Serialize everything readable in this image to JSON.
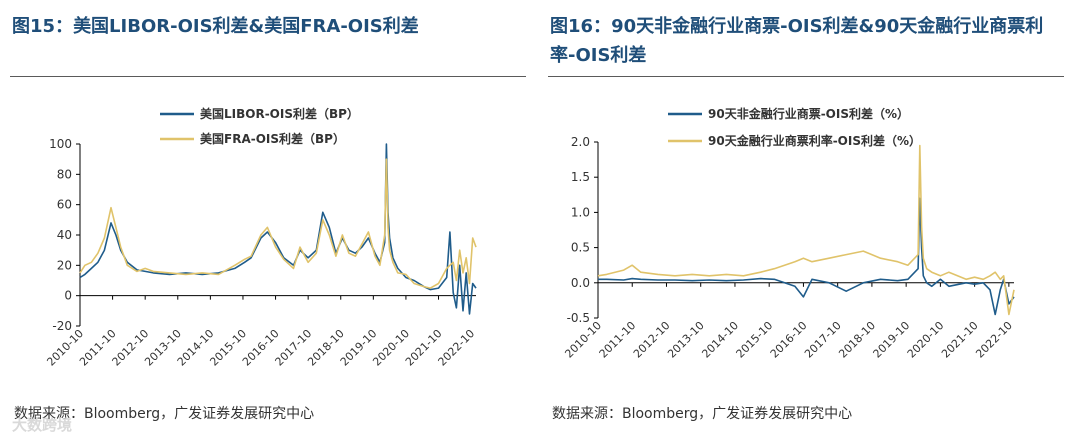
{
  "watermark": "大数跨境",
  "colors": {
    "title": "#1f4e79",
    "series_a": "#1f5c8b",
    "series_b": "#e0c36a",
    "axis": "#000000",
    "text": "#333333"
  },
  "chart_data": [
    {
      "figure_label": "图15：",
      "title": "美国LIBOR-OIS利差&美国FRA-OIS利差",
      "type": "line",
      "source_prefix": "数据来源：",
      "source_name": "Bloomberg",
      "source_suffix": "，广发证券发展研究中心",
      "ylim": [
        -20,
        100
      ],
      "yticks": [
        "100",
        "80",
        "60",
        "40",
        "20",
        "0",
        "-20"
      ],
      "ytick_values": [
        100,
        80,
        60,
        40,
        20,
        0,
        -20
      ],
      "x_range": [
        2010.75,
        2022.9
      ],
      "xticks": [
        "2010-10",
        "2011-10",
        "2012-10",
        "2013-10",
        "2014-10",
        "2015-10",
        "2016-10",
        "2017-10",
        "2018-10",
        "2019-10",
        "2020-10",
        "2021-10",
        "2022-10"
      ],
      "xtick_values": [
        2010.75,
        2011.75,
        2012.75,
        2013.75,
        2014.75,
        2015.75,
        2016.75,
        2017.75,
        2018.75,
        2019.75,
        2020.75,
        2021.75,
        2022.75
      ],
      "series": [
        {
          "name": "美国LIBOR-OIS利差（BP）",
          "color": "#1f5c8b",
          "x": [
            2010.75,
            2010.9,
            2011.1,
            2011.3,
            2011.5,
            2011.7,
            2011.85,
            2012.0,
            2012.2,
            2012.5,
            2012.75,
            2013.0,
            2013.5,
            2014.0,
            2014.5,
            2015.0,
            2015.5,
            2015.8,
            2016.0,
            2016.3,
            2016.5,
            2016.75,
            2017.0,
            2017.3,
            2017.5,
            2017.75,
            2018.0,
            2018.2,
            2018.4,
            2018.6,
            2018.8,
            2019.0,
            2019.2,
            2019.4,
            2019.6,
            2019.8,
            2019.95,
            2020.1,
            2020.15,
            2020.2,
            2020.25,
            2020.35,
            2020.5,
            2020.75,
            2021.0,
            2021.3,
            2021.5,
            2021.75,
            2022.0,
            2022.1,
            2022.2,
            2022.3,
            2022.4,
            2022.5,
            2022.6,
            2022.7,
            2022.8,
            2022.9
          ],
          "values": [
            12,
            14,
            18,
            22,
            30,
            48,
            40,
            30,
            22,
            17,
            16,
            15,
            14,
            15,
            14,
            15,
            18,
            22,
            25,
            38,
            42,
            35,
            25,
            20,
            30,
            25,
            30,
            55,
            45,
            28,
            38,
            30,
            28,
            32,
            38,
            28,
            22,
            35,
            100,
            55,
            38,
            25,
            18,
            12,
            10,
            6,
            4,
            5,
            12,
            42,
            2,
            -8,
            20,
            -10,
            15,
            -12,
            8,
            5
          ]
        },
        {
          "name": "美国FRA-OIS利差（BP）",
          "color": "#e0c36a",
          "x": [
            2010.75,
            2010.9,
            2011.1,
            2011.3,
            2011.5,
            2011.7,
            2011.85,
            2012.0,
            2012.2,
            2012.5,
            2012.75,
            2013.0,
            2013.5,
            2014.0,
            2014.5,
            2015.0,
            2015.5,
            2015.8,
            2016.0,
            2016.3,
            2016.5,
            2016.75,
            2017.0,
            2017.3,
            2017.5,
            2017.75,
            2018.0,
            2018.2,
            2018.4,
            2018.6,
            2018.8,
            2019.0,
            2019.2,
            2019.4,
            2019.6,
            2019.8,
            2019.95,
            2020.1,
            2020.15,
            2020.2,
            2020.25,
            2020.35,
            2020.5,
            2020.75,
            2021.0,
            2021.3,
            2021.5,
            2021.75,
            2022.0,
            2022.1,
            2022.2,
            2022.3,
            2022.4,
            2022.5,
            2022.6,
            2022.7,
            2022.8,
            2022.9
          ],
          "values": [
            15,
            20,
            22,
            28,
            38,
            58,
            45,
            32,
            20,
            16,
            18,
            16,
            15,
            14,
            15,
            14,
            20,
            24,
            26,
            40,
            45,
            32,
            24,
            18,
            32,
            22,
            28,
            50,
            40,
            26,
            40,
            28,
            26,
            34,
            42,
            26,
            20,
            40,
            90,
            45,
            30,
            22,
            15,
            14,
            8,
            6,
            5,
            8,
            18,
            20,
            22,
            10,
            30,
            15,
            25,
            8,
            38,
            32
          ]
        }
      ]
    },
    {
      "figure_label": "图16：",
      "title": "90天非金融行业商票-OIS利差&90天金融行业商票利率-OIS利差",
      "type": "line",
      "source_prefix": "数据来源：",
      "source_name": "Bloomberg",
      "source_suffix": "，广发证券发展研究中心",
      "ylim": [
        -0.5,
        2.0
      ],
      "yticks": [
        "2.0",
        "1.5",
        "1.0",
        "0.5",
        "0.0",
        "-0.5"
      ],
      "ytick_values": [
        2.0,
        1.5,
        1.0,
        0.5,
        0.0,
        -0.5
      ],
      "x_range": [
        2010.75,
        2022.9
      ],
      "xticks": [
        "2010-10",
        "2011-10",
        "2012-10",
        "2013-10",
        "2014-10",
        "2015-10",
        "2016-10",
        "2017-10",
        "2018-10",
        "2019-10",
        "2020-10",
        "2021-10",
        "2022-10"
      ],
      "xtick_values": [
        2010.75,
        2011.75,
        2012.75,
        2013.75,
        2014.75,
        2015.75,
        2016.75,
        2017.75,
        2018.75,
        2019.75,
        2020.75,
        2021.75,
        2022.75
      ],
      "series": [
        {
          "name": "90天非金融行业商票-OIS利差（%）",
          "color": "#1f5c8b",
          "x": [
            2010.75,
            2011.0,
            2011.5,
            2011.75,
            2012.0,
            2012.5,
            2013.0,
            2013.5,
            2014.0,
            2014.5,
            2015.0,
            2015.5,
            2015.9,
            2016.2,
            2016.5,
            2016.75,
            2017.0,
            2017.5,
            2018.0,
            2018.5,
            2019.0,
            2019.5,
            2019.8,
            2020.1,
            2020.15,
            2020.2,
            2020.25,
            2020.35,
            2020.5,
            2020.75,
            2021.0,
            2021.5,
            2021.75,
            2022.0,
            2022.2,
            2022.35,
            2022.5,
            2022.6,
            2022.75,
            2022.9
          ],
          "values": [
            0.05,
            0.05,
            0.04,
            0.06,
            0.05,
            0.04,
            0.04,
            0.03,
            0.04,
            0.03,
            0.04,
            0.06,
            0.05,
            0.0,
            -0.05,
            -0.2,
            0.05,
            0.0,
            -0.12,
            0.0,
            0.05,
            0.03,
            0.05,
            0.2,
            1.2,
            0.5,
            0.1,
            0.0,
            -0.05,
            0.05,
            -0.05,
            0.0,
            -0.02,
            0.0,
            -0.1,
            -0.45,
            -0.1,
            0.05,
            -0.3,
            -0.2
          ]
        },
        {
          "name": "90天金融行业商票利率-OIS利差（%）",
          "color": "#e0c36a",
          "x": [
            2010.75,
            2011.0,
            2011.5,
            2011.75,
            2012.0,
            2012.5,
            2013.0,
            2013.5,
            2014.0,
            2014.5,
            2015.0,
            2015.5,
            2015.9,
            2016.2,
            2016.5,
            2016.75,
            2017.0,
            2017.5,
            2018.0,
            2018.5,
            2019.0,
            2019.5,
            2019.8,
            2020.1,
            2020.15,
            2020.2,
            2020.25,
            2020.35,
            2020.5,
            2020.75,
            2021.0,
            2021.5,
            2021.75,
            2022.0,
            2022.2,
            2022.35,
            2022.5,
            2022.6,
            2022.75,
            2022.9
          ],
          "values": [
            0.1,
            0.12,
            0.18,
            0.25,
            0.15,
            0.12,
            0.1,
            0.12,
            0.1,
            0.12,
            0.1,
            0.15,
            0.2,
            0.25,
            0.3,
            0.35,
            0.3,
            0.35,
            0.4,
            0.45,
            0.35,
            0.3,
            0.25,
            0.4,
            1.95,
            0.8,
            0.35,
            0.2,
            0.15,
            0.1,
            0.15,
            0.05,
            0.08,
            0.05,
            0.1,
            0.15,
            0.05,
            0.1,
            -0.45,
            -0.1
          ]
        }
      ]
    }
  ]
}
